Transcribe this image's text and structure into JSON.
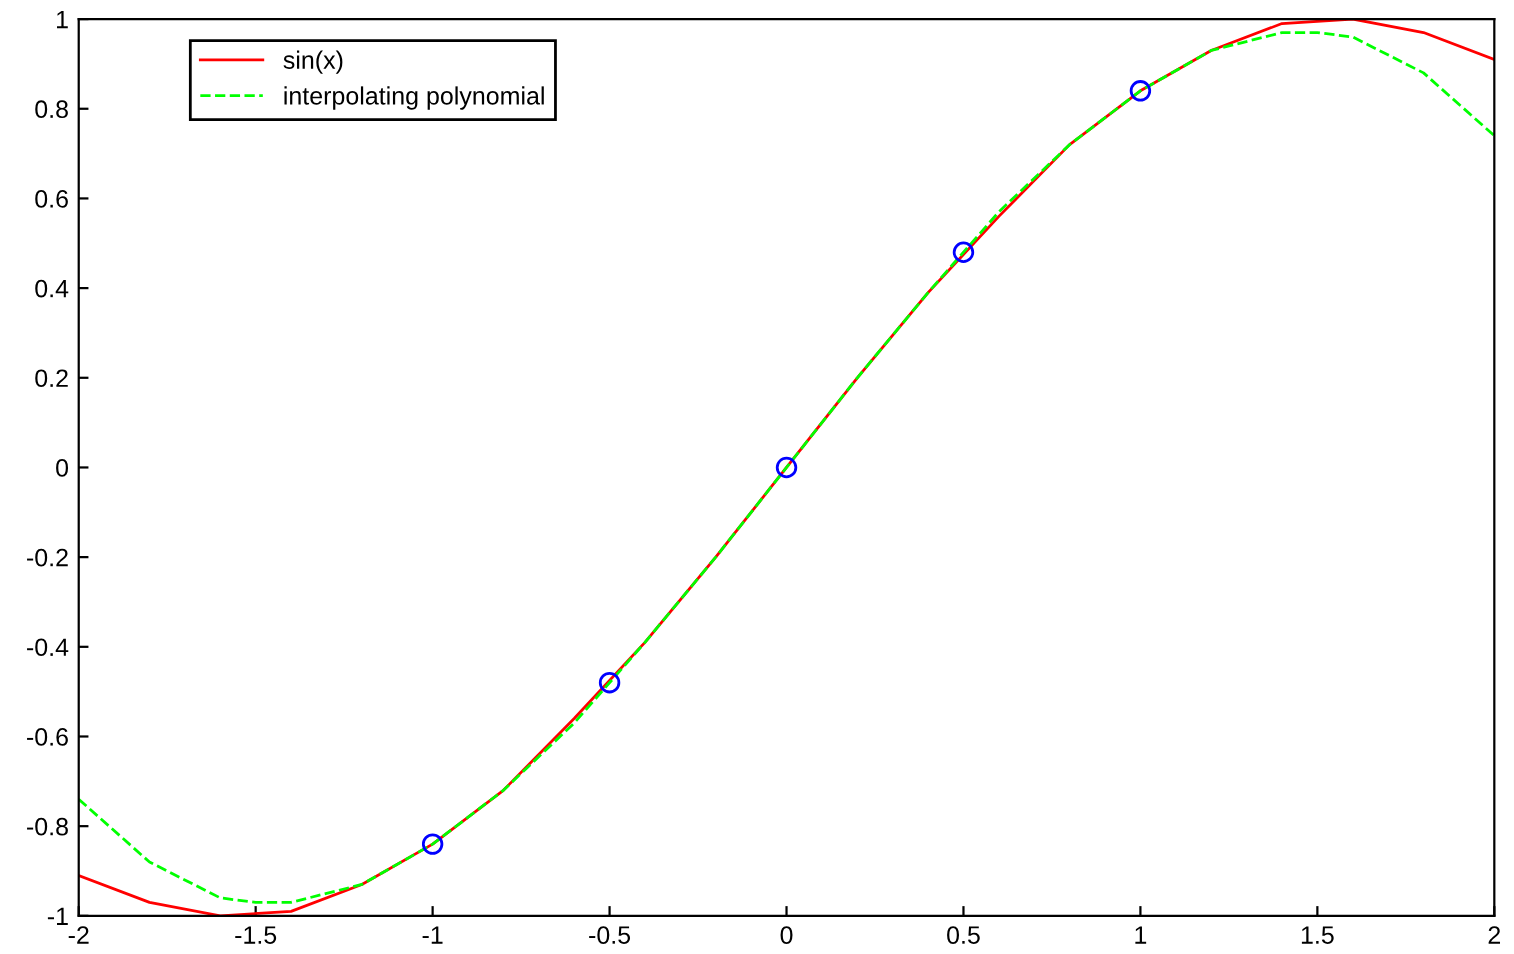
{
  "chart_data": {
    "type": "line",
    "xlim": [
      -2,
      2
    ],
    "ylim": [
      -1,
      1
    ],
    "xticks": [
      -2,
      -1.5,
      -1,
      -0.5,
      0,
      0.5,
      1,
      1.5,
      2
    ],
    "yticks": [
      -1,
      -0.8,
      -0.6,
      -0.4,
      -0.2,
      0,
      0.2,
      0.4,
      0.6,
      0.8,
      1
    ],
    "grid": false,
    "legend": "top left",
    "series": [
      {
        "name": "sin(x)",
        "color": "#ff0000",
        "line_style": "solid",
        "marker": "none",
        "x": [
          -2,
          -1.8,
          -1.6,
          -1.4,
          -1.2,
          -1,
          -0.8,
          -0.6,
          -0.4,
          -0.2,
          0,
          0.2,
          0.4,
          0.6,
          0.8,
          1,
          1.2,
          1.4,
          1.6,
          1.8,
          2
        ],
        "values": [
          -0.91,
          -0.97,
          -1.0,
          -0.99,
          -0.93,
          -0.84,
          -0.72,
          -0.56,
          -0.39,
          -0.2,
          0,
          0.2,
          0.39,
          0.56,
          0.72,
          0.84,
          0.93,
          0.99,
          1.0,
          0.97,
          0.91
        ]
      },
      {
        "name": "interpolating polynomial",
        "color": "#00ff00",
        "line_style": "dashed",
        "marker": "none",
        "x": [
          -2,
          -1.8,
          -1.6,
          -1.5,
          -1.4,
          -1.2,
          -1,
          -0.8,
          -0.6,
          -0.4,
          -0.2,
          0,
          0.2,
          0.4,
          0.6,
          0.8,
          1,
          1.2,
          1.4,
          1.5,
          1.6,
          1.8,
          2
        ],
        "values": [
          -0.74,
          -0.88,
          -0.96,
          -0.97,
          -0.97,
          -0.93,
          -0.84,
          -0.72,
          -0.57,
          -0.39,
          -0.2,
          0,
          0.2,
          0.39,
          0.57,
          0.72,
          0.84,
          0.93,
          0.97,
          0.97,
          0.96,
          0.88,
          0.74
        ]
      },
      {
        "type": "scatter",
        "color": "#0000ff",
        "marker": "circle",
        "x": [
          -1,
          -0.5,
          0,
          0.5,
          1
        ],
        "values": [
          -0.84,
          -0.48,
          0,
          0.48,
          0.84
        ]
      }
    ]
  }
}
